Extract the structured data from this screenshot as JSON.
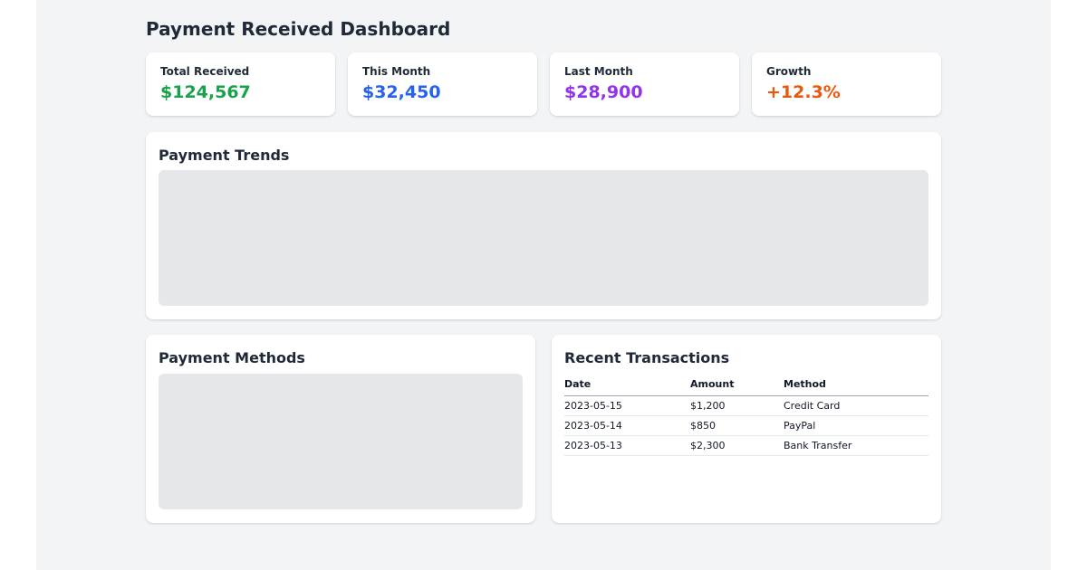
{
  "page": {
    "title": "Payment Received Dashboard"
  },
  "theme": {
    "page_background": "#f3f4f6",
    "card_background": "#ffffff",
    "heading_color": "#1f2937",
    "placeholder_color": "#e5e7eb",
    "table_header_border": "#9ca3af",
    "table_row_border": "#e5e7eb"
  },
  "stats": [
    {
      "label": "Total Received",
      "value": "$124,567",
      "color": "#16a34a"
    },
    {
      "label": "This Month",
      "value": "$32,450",
      "color": "#2563eb"
    },
    {
      "label": "Last Month",
      "value": "$28,900",
      "color": "#9333ea"
    },
    {
      "label": "Growth",
      "value": "+12.3%",
      "color": "#ea580c"
    }
  ],
  "sections": {
    "trends": {
      "title": "Payment Trends"
    },
    "methods": {
      "title": "Payment Methods"
    },
    "transactions": {
      "title": "Recent Transactions",
      "columns": [
        "Date",
        "Amount",
        "Method"
      ],
      "rows": [
        {
          "date": "2023-05-15",
          "amount": "$1,200",
          "method": "Credit Card"
        },
        {
          "date": "2023-05-14",
          "amount": "$850",
          "method": "PayPal"
        },
        {
          "date": "2023-05-13",
          "amount": "$2,300",
          "method": "Bank Transfer"
        }
      ]
    }
  }
}
